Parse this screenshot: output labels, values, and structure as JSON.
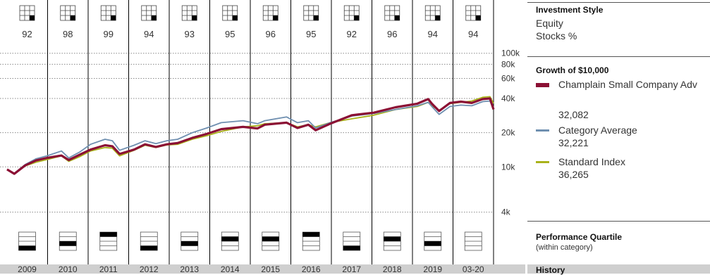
{
  "chart_data": {
    "type": "line",
    "title": "Growth of  $10,000",
    "y_scale": "log",
    "ylim": [
      3500,
      110000
    ],
    "y_ticks": [
      "100k",
      "80k",
      "60k",
      "40k",
      "20k",
      "10k",
      "4k"
    ],
    "y_tick_values": [
      100000,
      80000,
      60000,
      40000,
      20000,
      10000,
      4000
    ],
    "x_start": "2009-01",
    "x_end": "2020-03",
    "years": [
      "2009",
      "2010",
      "2011",
      "2012",
      "2013",
      "2014",
      "2015",
      "2016",
      "2017",
      "2018",
      "2019",
      "03-20"
    ],
    "style_box_values": [
      "92",
      "98",
      "99",
      "94",
      "93",
      "95",
      "96",
      "95",
      "92",
      "96",
      "94",
      "94"
    ],
    "quartile_ranks": [
      4,
      3,
      1,
      4,
      3,
      2,
      2,
      1,
      4,
      2,
      3,
      null
    ],
    "series": [
      {
        "name": "Champlain Small Company Adv",
        "final_value": "32,082",
        "color": "#8b1034",
        "points": [
          [
            "2009-01",
            9500
          ],
          [
            "2009-03",
            8700
          ],
          [
            "2009-06",
            10300
          ],
          [
            "2009-09",
            11400
          ],
          [
            "2009-12",
            12000
          ],
          [
            "2010-04",
            12600
          ],
          [
            "2010-06",
            11500
          ],
          [
            "2010-09",
            12800
          ],
          [
            "2010-12",
            14200
          ],
          [
            "2011-04",
            15500
          ],
          [
            "2011-06",
            15200
          ],
          [
            "2011-08",
            13000
          ],
          [
            "2011-12",
            14200
          ],
          [
            "2012-03",
            15800
          ],
          [
            "2012-06",
            15000
          ],
          [
            "2012-09",
            15800
          ],
          [
            "2012-12",
            16200
          ],
          [
            "2013-04",
            18000
          ],
          [
            "2013-08",
            19500
          ],
          [
            "2013-12",
            21500
          ],
          [
            "2014-03",
            22000
          ],
          [
            "2014-06",
            22500
          ],
          [
            "2014-10",
            21800
          ],
          [
            "2014-12",
            23500
          ],
          [
            "2015-06",
            24500
          ],
          [
            "2015-09",
            22000
          ],
          [
            "2015-12",
            23500
          ],
          [
            "2016-02",
            21000
          ],
          [
            "2016-06",
            24000
          ],
          [
            "2016-12",
            28500
          ],
          [
            "2017-06",
            30000
          ],
          [
            "2017-12",
            33500
          ],
          [
            "2018-06",
            36000
          ],
          [
            "2018-09",
            39500
          ],
          [
            "2018-10",
            36000
          ],
          [
            "2018-12",
            31000
          ],
          [
            "2019-03",
            36500
          ],
          [
            "2019-06",
            37500
          ],
          [
            "2019-09",
            36500
          ],
          [
            "2019-12",
            39500
          ],
          [
            "2020-02",
            40000
          ],
          [
            "2020-03",
            32082
          ]
        ]
      },
      {
        "name": "Category Average",
        "final_value": "32,221",
        "color": "#6f8fb0",
        "points": [
          [
            "2009-01",
            9500
          ],
          [
            "2009-03",
            8800
          ],
          [
            "2009-06",
            10500
          ],
          [
            "2009-09",
            11800
          ],
          [
            "2009-12",
            12500
          ],
          [
            "2010-04",
            13800
          ],
          [
            "2010-06",
            12000
          ],
          [
            "2010-09",
            13500
          ],
          [
            "2010-12",
            15800
          ],
          [
            "2011-04",
            17500
          ],
          [
            "2011-06",
            17000
          ],
          [
            "2011-08",
            14000
          ],
          [
            "2011-12",
            15500
          ],
          [
            "2012-03",
            17000
          ],
          [
            "2012-06",
            16000
          ],
          [
            "2012-09",
            17000
          ],
          [
            "2012-12",
            17500
          ],
          [
            "2013-04",
            20000
          ],
          [
            "2013-08",
            22000
          ],
          [
            "2013-12",
            24500
          ],
          [
            "2014-03",
            25000
          ],
          [
            "2014-06",
            25500
          ],
          [
            "2014-10",
            24000
          ],
          [
            "2014-12",
            25500
          ],
          [
            "2015-06",
            27500
          ],
          [
            "2015-09",
            24500
          ],
          [
            "2015-12",
            25500
          ],
          [
            "2016-02",
            22000
          ],
          [
            "2016-06",
            24500
          ],
          [
            "2016-12",
            28000
          ],
          [
            "2017-06",
            29500
          ],
          [
            "2017-12",
            32000
          ],
          [
            "2018-06",
            34500
          ],
          [
            "2018-09",
            37000
          ],
          [
            "2018-10",
            34000
          ],
          [
            "2018-12",
            29000
          ],
          [
            "2019-03",
            34000
          ],
          [
            "2019-06",
            35000
          ],
          [
            "2019-09",
            34500
          ],
          [
            "2019-12",
            37500
          ],
          [
            "2020-02",
            38000
          ],
          [
            "2020-03",
            32221
          ]
        ]
      },
      {
        "name": "Standard Index",
        "final_value": "36,265",
        "color": "#a9b21a",
        "points": [
          [
            "2009-01",
            9500
          ],
          [
            "2009-03",
            8700
          ],
          [
            "2009-06",
            10200
          ],
          [
            "2009-09",
            11000
          ],
          [
            "2009-12",
            11600
          ],
          [
            "2010-04",
            12500
          ],
          [
            "2010-06",
            11200
          ],
          [
            "2010-09",
            12300
          ],
          [
            "2010-12",
            13800
          ],
          [
            "2011-04",
            14800
          ],
          [
            "2011-06",
            14600
          ],
          [
            "2011-08",
            12500
          ],
          [
            "2011-12",
            14000
          ],
          [
            "2012-03",
            15500
          ],
          [
            "2012-06",
            14800
          ],
          [
            "2012-09",
            15600
          ],
          [
            "2012-12",
            15800
          ],
          [
            "2013-04",
            17500
          ],
          [
            "2013-08",
            18800
          ],
          [
            "2013-12",
            20500
          ],
          [
            "2014-03",
            21500
          ],
          [
            "2014-06",
            22500
          ],
          [
            "2014-10",
            23000
          ],
          [
            "2014-12",
            24000
          ],
          [
            "2015-06",
            24500
          ],
          [
            "2015-09",
            22500
          ],
          [
            "2015-12",
            23500
          ],
          [
            "2016-02",
            22500
          ],
          [
            "2016-06",
            24500
          ],
          [
            "2016-12",
            26500
          ],
          [
            "2017-06",
            28500
          ],
          [
            "2017-12",
            32000
          ],
          [
            "2018-06",
            34000
          ],
          [
            "2018-09",
            37000
          ],
          [
            "2018-10",
            34500
          ],
          [
            "2018-12",
            31500
          ],
          [
            "2019-03",
            36000
          ],
          [
            "2019-06",
            37000
          ],
          [
            "2019-09",
            38000
          ],
          [
            "2019-12",
            41000
          ],
          [
            "2020-02",
            41500
          ],
          [
            "2020-03",
            36265
          ]
        ]
      }
    ]
  },
  "panel": {
    "investment_style_title": "Investment Style",
    "investment_style_line1": "Equity",
    "investment_style_line2": "Stocks %",
    "growth_title": "Growth of  $10,000",
    "quartile_title": "Performance Quartile",
    "quartile_subtitle": "(within category)",
    "history_title": "History"
  }
}
